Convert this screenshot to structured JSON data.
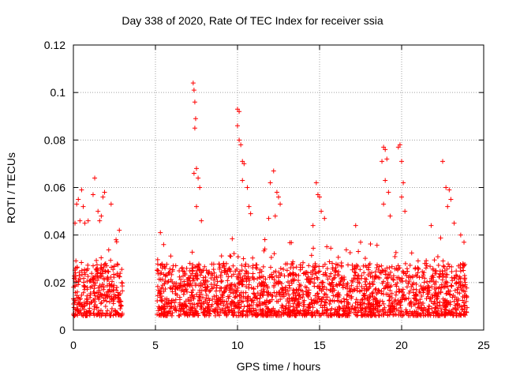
{
  "chart_data": {
    "type": "scatter",
    "title": "Day 338 of 2020, Rate Of TEC Index for receiver ssia",
    "xlabel": "GPS time / hours",
    "ylabel": "ROTI / TECUs",
    "xlim": [
      0,
      25
    ],
    "ylim": [
      0,
      0.12
    ],
    "x_ticks": [
      "0",
      "5",
      "10",
      "15",
      "20",
      "25"
    ],
    "y_ticks": [
      "0",
      "0.02",
      "0.04",
      "0.06",
      "0.08",
      "0.1",
      "0.12"
    ],
    "grid": true,
    "marker": "+",
    "color": "#ff0000",
    "series": [
      {
        "points": [
          [
            0.1,
            0.045
          ],
          [
            0.2,
            0.053
          ],
          [
            0.3,
            0.055
          ],
          [
            0.4,
            0.046
          ],
          [
            0.5,
            0.059
          ],
          [
            0.6,
            0.052
          ],
          [
            0.7,
            0.045
          ],
          [
            0.9,
            0.046
          ],
          [
            1.2,
            0.057
          ],
          [
            1.3,
            0.064
          ],
          [
            1.5,
            0.05
          ],
          [
            1.6,
            0.046
          ],
          [
            1.7,
            0.048
          ],
          [
            1.8,
            0.056
          ],
          [
            1.9,
            0.058
          ],
          [
            2.3,
            0.053
          ],
          [
            2.6,
            0.038
          ],
          [
            2.8,
            0.042
          ],
          [
            5.3,
            0.041
          ],
          [
            5.5,
            0.036
          ],
          [
            7.3,
            0.104
          ],
          [
            7.35,
            0.101
          ],
          [
            7.4,
            0.096
          ],
          [
            7.45,
            0.089
          ],
          [
            7.4,
            0.085
          ],
          [
            7.35,
            0.066
          ],
          [
            7.5,
            0.068
          ],
          [
            7.6,
            0.064
          ],
          [
            7.7,
            0.06
          ],
          [
            7.8,
            0.046
          ],
          [
            7.5,
            0.052
          ],
          [
            10.0,
            0.093
          ],
          [
            10.1,
            0.092
          ],
          [
            10.0,
            0.086
          ],
          [
            10.1,
            0.08
          ],
          [
            10.2,
            0.078
          ],
          [
            10.3,
            0.071
          ],
          [
            10.4,
            0.07
          ],
          [
            10.3,
            0.063
          ],
          [
            10.6,
            0.06
          ],
          [
            10.7,
            0.052
          ],
          [
            10.8,
            0.049
          ],
          [
            12.0,
            0.062
          ],
          [
            12.2,
            0.067
          ],
          [
            12.4,
            0.058
          ],
          [
            12.5,
            0.056
          ],
          [
            12.6,
            0.053
          ],
          [
            12.3,
            0.048
          ],
          [
            11.9,
            0.047
          ],
          [
            14.8,
            0.062
          ],
          [
            14.9,
            0.057
          ],
          [
            15.0,
            0.056
          ],
          [
            15.1,
            0.05
          ],
          [
            15.3,
            0.047
          ],
          [
            14.6,
            0.044
          ],
          [
            17.2,
            0.044
          ],
          [
            17.5,
            0.037
          ],
          [
            18.8,
            0.071
          ],
          [
            18.9,
            0.077
          ],
          [
            19.0,
            0.076
          ],
          [
            19.1,
            0.072
          ],
          [
            19.0,
            0.063
          ],
          [
            19.2,
            0.058
          ],
          [
            18.9,
            0.053
          ],
          [
            19.3,
            0.048
          ],
          [
            19.8,
            0.077
          ],
          [
            19.9,
            0.078
          ],
          [
            20.0,
            0.071
          ],
          [
            20.1,
            0.062
          ],
          [
            20.0,
            0.056
          ],
          [
            20.2,
            0.05
          ],
          [
            21.8,
            0.044
          ],
          [
            22.5,
            0.071
          ],
          [
            22.7,
            0.06
          ],
          [
            22.9,
            0.059
          ],
          [
            23.0,
            0.055
          ],
          [
            22.8,
            0.052
          ],
          [
            23.2,
            0.045
          ],
          [
            23.6,
            0.04
          ],
          [
            23.8,
            0.037
          ]
        ]
      }
    ]
  }
}
